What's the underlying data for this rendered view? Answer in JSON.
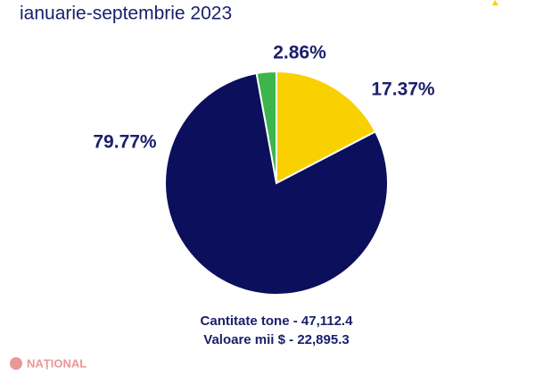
{
  "chart_data": {
    "type": "pie",
    "title": "ianuarie-septembrie 2023",
    "values": [
      17.37,
      79.77,
      2.86
    ],
    "value_labels": [
      "17.37%",
      "79.77%",
      "2.86%"
    ],
    "colors": [
      "#f9d000",
      "#0b0f5c",
      "#3cb64a"
    ],
    "notes": [
      "Cantitate tone - 47,112.4",
      "Valoare mii $ - 22,895.3"
    ],
    "watermark": "NAȚIONAL"
  }
}
